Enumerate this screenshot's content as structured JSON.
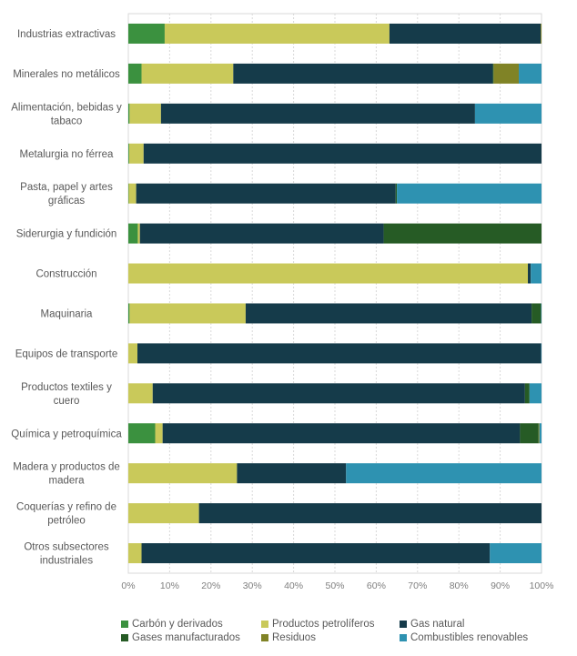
{
  "chart_data": {
    "type": "bar",
    "orientation": "horizontal",
    "stacked": "percent",
    "title": "",
    "xlabel": "",
    "ylabel": "",
    "xlim": [
      0,
      100
    ],
    "x_ticks": [
      "0%",
      "10%",
      "20%",
      "30%",
      "40%",
      "50%",
      "60%",
      "70%",
      "80%",
      "90%",
      "100%"
    ],
    "grid": "vertical-dashed",
    "legend_position": "bottom",
    "categories": [
      [
        "Industrias extractivas"
      ],
      [
        "Minerales no metálicos"
      ],
      [
        "Alimentación, bebidas y",
        "tabaco"
      ],
      [
        "Metalurgia no férrea"
      ],
      [
        "Pasta, papel y artes",
        "gráficas"
      ],
      [
        "Siderurgia y fundición"
      ],
      [
        "Construcción"
      ],
      [
        "Maquinaria"
      ],
      [
        "Equipos de transporte"
      ],
      [
        "Productos textiles y",
        "cuero"
      ],
      [
        "Química y petroquímica"
      ],
      [
        "Madera y productos de",
        "madera"
      ],
      [
        "Coquerías y refino de",
        "petróleo"
      ],
      [
        "Otros subsectores",
        "industriales"
      ]
    ],
    "series": [
      {
        "name": "Carbón y derivados",
        "color": "#3b913f",
        "values": [
          8.8,
          3.2,
          0.3,
          0.2,
          0.1,
          2.3,
          0.0,
          0.3,
          0.0,
          0.0,
          6.5,
          0.0,
          0.0,
          0.0
        ]
      },
      {
        "name": "Productos petrolíferos",
        "color": "#c9c95a",
        "values": [
          54.4,
          22.2,
          7.6,
          3.5,
          1.8,
          0.5,
          96.7,
          28.1,
          2.2,
          5.9,
          1.8,
          26.3,
          17.1,
          3.2
        ]
      },
      {
        "name": "Gas natural",
        "color": "#153b4a",
        "values": [
          36.6,
          62.8,
          76.0,
          96.3,
          62.8,
          59.0,
          0.7,
          69.2,
          97.7,
          90.1,
          86.5,
          26.4,
          82.9,
          84.3
        ]
      },
      {
        "name": "Gases manufacturados",
        "color": "#265b25",
        "values": [
          0.0,
          0.2,
          0.0,
          0.0,
          0.3,
          38.2,
          0.0,
          2.3,
          0.0,
          1.1,
          4.5,
          0.0,
          0.0,
          0.0
        ]
      },
      {
        "name": "Residuos",
        "color": "#808326",
        "values": [
          0.2,
          6.1,
          0.0,
          0.0,
          0.0,
          0.0,
          0.0,
          0.0,
          0.0,
          0.0,
          0.2,
          0.0,
          0.0,
          0.0
        ]
      },
      {
        "name": "Combustibles renovables",
        "color": "#2e92b1",
        "values": [
          0.0,
          5.5,
          16.1,
          0.0,
          35.0,
          0.0,
          2.6,
          0.1,
          0.1,
          2.9,
          0.5,
          47.3,
          0.0,
          12.5
        ]
      }
    ]
  }
}
